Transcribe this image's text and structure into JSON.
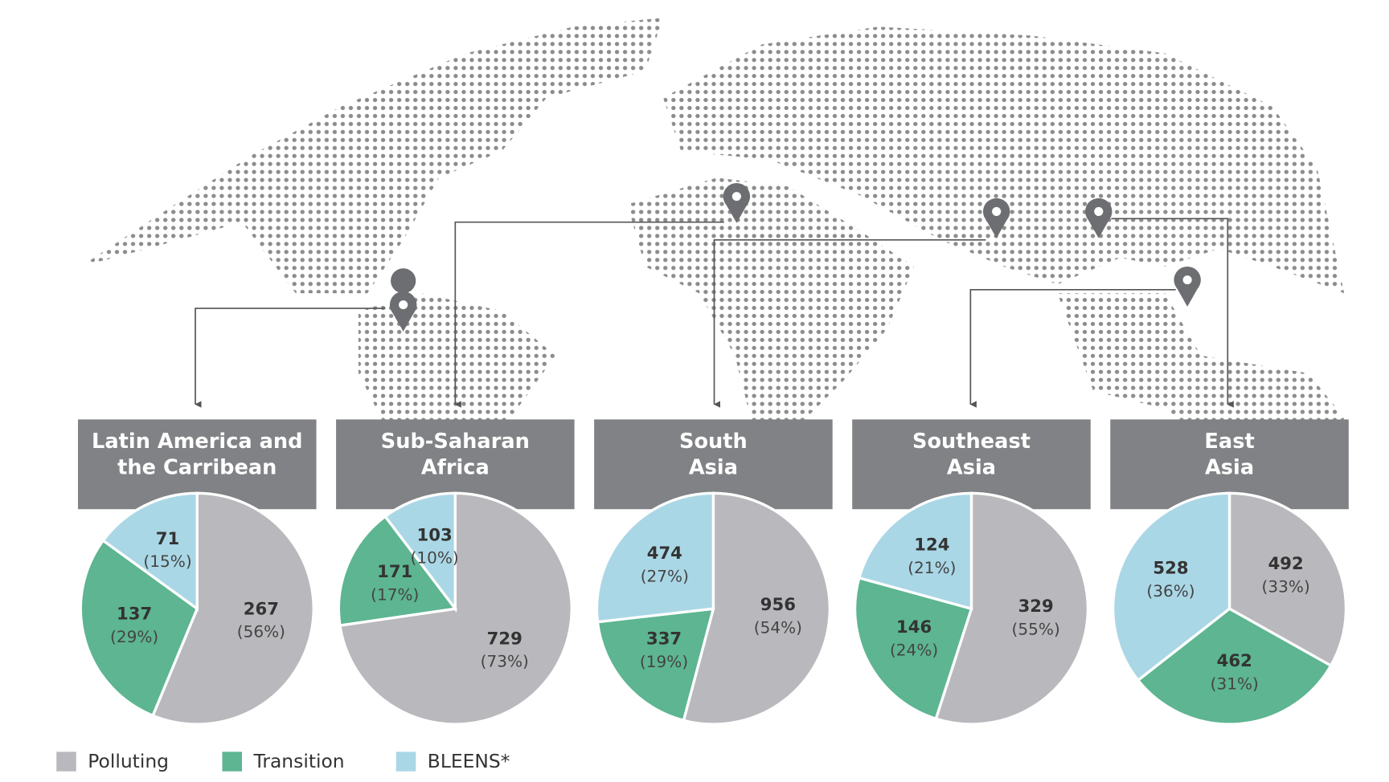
{
  "chart_data": [
    {
      "type": "pie",
      "title": [
        "Latin America and",
        "the Carribean"
      ],
      "categories": [
        "Polluting",
        "Transition",
        "BLEENS*"
      ],
      "colors": [
        "#b9b9bd",
        "#5db591",
        "#aad7e6"
      ],
      "values": [
        267,
        137,
        71
      ],
      "percent_labels": [
        "(56%)",
        "(29%)",
        "(15%)"
      ]
    },
    {
      "type": "pie",
      "title": [
        "Sub-Saharan",
        "Africa"
      ],
      "categories": [
        "Polluting",
        "Transition",
        "BLEENS*"
      ],
      "colors": [
        "#b9b9bd",
        "#5db591",
        "#aad7e6"
      ],
      "values": [
        729,
        171,
        103
      ],
      "percent_labels": [
        "(73%)",
        "(17%)",
        "(10%)"
      ]
    },
    {
      "type": "pie",
      "title": [
        "South",
        "Asia"
      ],
      "categories": [
        "Polluting",
        "Transition",
        "BLEENS*"
      ],
      "colors": [
        "#b9b9bd",
        "#5db591",
        "#aad7e6"
      ],
      "values": [
        956,
        337,
        474
      ],
      "percent_labels": [
        "(54%)",
        "(19%)",
        "(27%)"
      ]
    },
    {
      "type": "pie",
      "title": [
        "Southeast",
        "Asia"
      ],
      "categories": [
        "Polluting",
        "Transition",
        "BLEENS*"
      ],
      "colors": [
        "#b9b9bd",
        "#5db591",
        "#aad7e6"
      ],
      "values": [
        329,
        146,
        124
      ],
      "percent_labels": [
        "(55%)",
        "(24%)",
        "(21%)"
      ]
    },
    {
      "type": "pie",
      "title": [
        "East",
        "Asia"
      ],
      "categories": [
        "Polluting",
        "Transition",
        "BLEENS*"
      ],
      "colors": [
        "#b9b9bd",
        "#5db591",
        "#aad7e6"
      ],
      "values": [
        492,
        462,
        528
      ],
      "percent_labels": [
        "(33%)",
        "(31%)",
        "(36%)"
      ]
    }
  ]
}
